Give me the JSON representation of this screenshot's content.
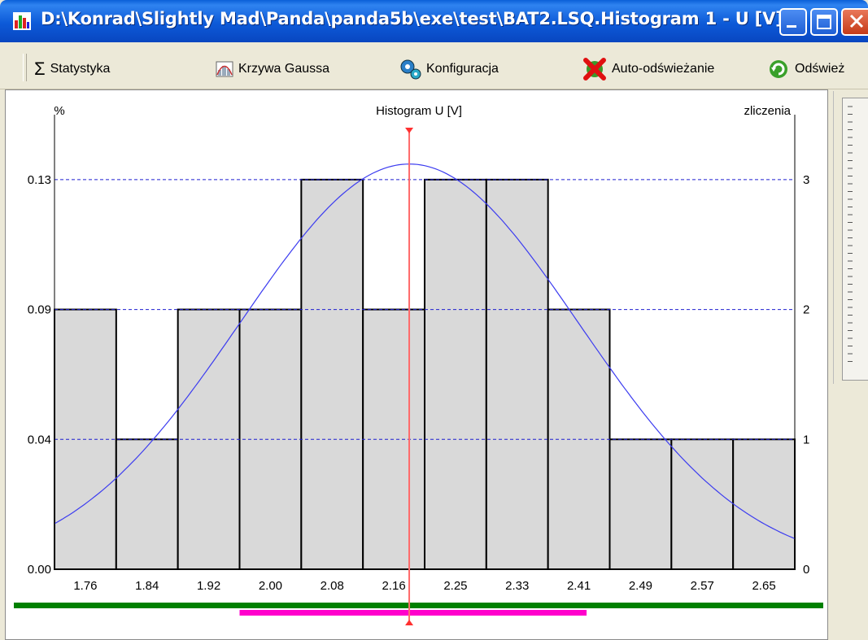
{
  "window": {
    "title": "D:\\Konrad\\Slightly Mad\\Panda\\panda5b\\exe\\test\\BAT2.LSQ.Histogram 1 - U [V]",
    "icon": "bar-chart-icon"
  },
  "toolbar": {
    "items": [
      {
        "label": "Statystyka",
        "icon": "sigma-icon"
      },
      {
        "label": "Krzywa Gaussa",
        "icon": "gauss-curve-icon"
      },
      {
        "label": "Konfiguracja",
        "icon": "gears-icon"
      },
      {
        "label": "Auto-odświeżanie",
        "icon": "auto-refresh-disabled-icon"
      },
      {
        "label": "Odśwież",
        "icon": "refresh-icon"
      }
    ]
  },
  "colors": {
    "bar_fill": "#d9d9d9",
    "bar_stroke": "#000000",
    "gauss_curve": "#3c3cf0",
    "grid": "#1f1fd0",
    "mean_line": "#ff6a6a",
    "range_bar": "#008000",
    "spread_bar": "#ff00cc"
  },
  "chart_data": {
    "type": "bar",
    "title": "Histogram U [V]",
    "left_axis_label": "%",
    "right_axis_label": "zliczenia",
    "left_ticks": [
      "0.00",
      "0.04",
      "0.09",
      "0.13"
    ],
    "right_ticks": [
      "0",
      "1",
      "2",
      "3"
    ],
    "x_tick_labels": [
      "1.76",
      "1.84",
      "1.92",
      "2.00",
      "2.08",
      "2.16",
      "2.25",
      "2.33",
      "2.41",
      "2.49",
      "2.57",
      "2.65"
    ],
    "bins": [
      {
        "from": 1.72,
        "to": 1.8,
        "count": 2
      },
      {
        "from": 1.8,
        "to": 1.88,
        "count": 1
      },
      {
        "from": 1.88,
        "to": 1.96,
        "count": 2
      },
      {
        "from": 1.96,
        "to": 2.04,
        "count": 2
      },
      {
        "from": 2.04,
        "to": 2.12,
        "count": 3
      },
      {
        "from": 2.12,
        "to": 2.2,
        "count": 2
      },
      {
        "from": 2.2,
        "to": 2.28,
        "count": 3
      },
      {
        "from": 2.28,
        "to": 2.36,
        "count": 3
      },
      {
        "from": 2.36,
        "to": 2.44,
        "count": 2
      },
      {
        "from": 2.44,
        "to": 2.52,
        "count": 1
      },
      {
        "from": 2.52,
        "to": 2.6,
        "count": 1
      },
      {
        "from": 2.6,
        "to": 2.68,
        "count": 1
      }
    ],
    "count_range": [
      0,
      3.5
    ],
    "x_range": [
      1.72,
      2.68
    ],
    "gauss": {
      "mean": 2.18,
      "sigma": 0.22,
      "peak_count": 3.12
    },
    "mean_value": 2.18,
    "range_bar": [
      1.72,
      2.68
    ],
    "spread_bar": [
      1.96,
      2.41
    ],
    "grid": true
  }
}
